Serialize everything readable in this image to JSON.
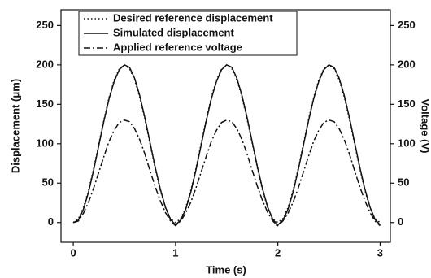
{
  "chart_data": {
    "type": "line",
    "xlabel": "Time (s)",
    "ylabel": "Displacement (μm)",
    "y2label": "Voltage (V)",
    "xlim": [
      -0.12,
      3.1
    ],
    "xticks": [
      0,
      1,
      2,
      3
    ],
    "ylim": [
      -25,
      270
    ],
    "yticks": [
      0,
      50,
      100,
      150,
      200,
      250
    ],
    "y2lim": [
      -25,
      270
    ],
    "y2ticks": [
      0,
      50,
      100,
      150,
      200,
      250
    ],
    "legend": "upper left",
    "x": [
      0,
      0.05,
      0.1,
      0.15,
      0.2,
      0.25,
      0.3,
      0.35,
      0.4,
      0.45,
      0.5,
      0.55,
      0.6,
      0.65,
      0.7,
      0.75,
      0.8,
      0.85,
      0.9,
      0.95,
      1,
      1.05,
      1.1,
      1.15,
      1.2,
      1.25,
      1.3,
      1.35,
      1.4,
      1.45,
      1.5,
      1.55,
      1.6,
      1.65,
      1.7,
      1.75,
      1.8,
      1.85,
      1.9,
      1.95,
      2,
      2.05,
      2.1,
      2.15,
      2.2,
      2.25,
      2.3,
      2.35,
      2.4,
      2.45,
      2.5,
      2.55,
      2.6,
      2.65,
      2.7,
      2.75,
      2.8,
      2.85,
      2.9,
      2.95,
      3
    ],
    "series": [
      {
        "name": "Desired reference displacement",
        "color": "#111111",
        "dash": "dotted",
        "values": [
          0,
          4.9,
          19.1,
          41.2,
          69.1,
          100,
          130.9,
          158.8,
          180.9,
          195.1,
          200,
          195.1,
          180.9,
          158.8,
          130.9,
          100,
          69.1,
          41.2,
          19.1,
          4.9,
          0,
          4.9,
          19.1,
          41.2,
          69.1,
          100,
          130.9,
          158.8,
          180.9,
          195.1,
          200,
          195.1,
          180.9,
          158.8,
          130.9,
          100,
          69.1,
          41.2,
          19.1,
          4.9,
          0,
          4.9,
          19.1,
          41.2,
          69.1,
          100,
          130.9,
          158.8,
          180.9,
          195.1,
          200,
          195.1,
          180.9,
          158.8,
          130.9,
          100,
          69.1,
          41.2,
          19.1,
          4.9,
          0
        ]
      },
      {
        "name": "Simulated displacement",
        "color": "#111111",
        "dash": "solid",
        "values": [
          0,
          3,
          17,
          39,
          67,
          98,
          129,
          157,
          179,
          194,
          200,
          197,
          183,
          161,
          133,
          102,
          71,
          43,
          20,
          4,
          -3,
          3,
          17,
          39,
          67,
          98,
          129,
          157,
          179,
          194,
          200,
          197,
          183,
          161,
          133,
          102,
          71,
          43,
          20,
          4,
          -3,
          3,
          17,
          39,
          67,
          98,
          129,
          157,
          179,
          194,
          200,
          197,
          183,
          161,
          133,
          102,
          71,
          43,
          20,
          4,
          -3
        ]
      },
      {
        "name": "Applied reference voltage",
        "color": "#111111",
        "dash": "dashdot",
        "axis": "y2",
        "values": [
          0,
          2,
          12,
          26,
          44,
          64,
          84,
          103,
          117,
          127,
          130,
          128,
          119,
          105,
          87,
          66,
          46,
          28,
          13,
          2,
          -4,
          2,
          12,
          26,
          44,
          64,
          84,
          103,
          117,
          127,
          130,
          128,
          119,
          105,
          87,
          66,
          46,
          28,
          13,
          2,
          -4,
          2,
          12,
          26,
          44,
          64,
          84,
          103,
          117,
          127,
          130,
          128,
          119,
          105,
          87,
          66,
          46,
          28,
          13,
          2,
          -4
        ]
      }
    ]
  }
}
